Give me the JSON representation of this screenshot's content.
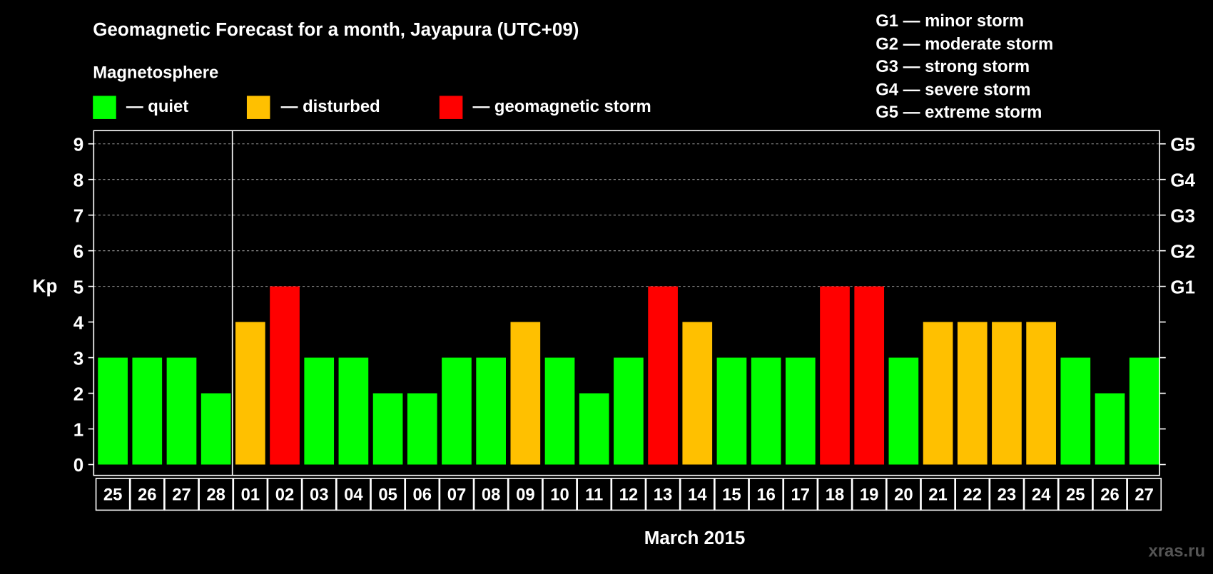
{
  "title": "Geomagnetic Forecast for a month, Jayapura (UTC+09)",
  "legend": {
    "heading": "Magnetosphere",
    "items": [
      {
        "label": "— quiet",
        "color": "#00ff00"
      },
      {
        "label": "— disturbed",
        "color": "#ffc000"
      },
      {
        "label": "— geomagnetic storm",
        "color": "#ff0000"
      }
    ],
    "storm_scale": [
      "G1 — minor storm",
      "G2 — moderate storm",
      "G3 — strong storm",
      "G4 — severe storm",
      "G5 — extreme storm"
    ]
  },
  "watermark": "xras.ru",
  "chart_data": {
    "type": "bar",
    "title": "Geomagnetic Forecast for a month, Jayapura (UTC+09)",
    "xlabel": "March 2015",
    "ylabel": "Kp",
    "ylim": [
      0,
      9
    ],
    "yticks": [
      "0",
      "1",
      "2",
      "3",
      "4",
      "5",
      "6",
      "7",
      "8",
      "9"
    ],
    "right_ticks": [
      {
        "kp": 5,
        "label": "G1"
      },
      {
        "kp": 6,
        "label": "G2"
      },
      {
        "kp": 7,
        "label": "G3"
      },
      {
        "kp": 8,
        "label": "G4"
      },
      {
        "kp": 9,
        "label": "G5"
      }
    ],
    "grid": "dashed horizontal at Kp 5-9",
    "month_divider_after": "28",
    "categories": [
      "25",
      "26",
      "27",
      "28",
      "01",
      "02",
      "03",
      "04",
      "05",
      "06",
      "07",
      "08",
      "09",
      "10",
      "11",
      "12",
      "13",
      "14",
      "15",
      "16",
      "17",
      "18",
      "19",
      "20",
      "21",
      "22",
      "23",
      "24",
      "25",
      "26",
      "27"
    ],
    "values": [
      3,
      3,
      3,
      2,
      4,
      5,
      3,
      3,
      2,
      2,
      3,
      3,
      4,
      3,
      2,
      3,
      5,
      4,
      3,
      3,
      3,
      5,
      5,
      3,
      4,
      4,
      4,
      4,
      3,
      2,
      3
    ],
    "colors": {
      "quiet": "#00ff00",
      "disturbed": "#ffc000",
      "storm": "#ff0000"
    }
  }
}
